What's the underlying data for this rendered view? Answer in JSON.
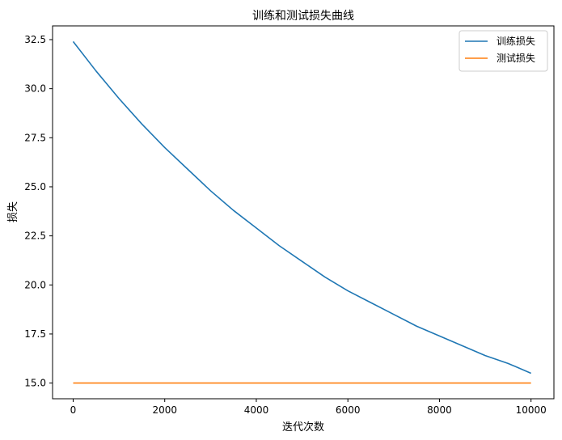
{
  "chart_data": {
    "type": "line",
    "title": "训练和测试损失曲线",
    "xlabel": "迭代次数",
    "ylabel": "损失",
    "xlim": [
      -450,
      10500
    ],
    "ylim": [
      14.2,
      33.2
    ],
    "x_ticks": [
      0,
      2000,
      4000,
      6000,
      8000,
      10000
    ],
    "x_tick_labels": [
      "0",
      "2000",
      "4000",
      "6000",
      "8000",
      "10000"
    ],
    "y_ticks": [
      15.0,
      17.5,
      20.0,
      22.5,
      25.0,
      27.5,
      30.0,
      32.5
    ],
    "y_tick_labels": [
      "15.0",
      "17.5",
      "20.0",
      "22.5",
      "25.0",
      "27.5",
      "30.0",
      "32.5"
    ],
    "grid": false,
    "legend_position": "top-right",
    "series": [
      {
        "name": "训练损失",
        "color": "#1f77b4",
        "x": [
          0,
          500,
          1000,
          1500,
          2000,
          2500,
          3000,
          3500,
          4000,
          4500,
          5000,
          5500,
          6000,
          6500,
          7000,
          7500,
          8000,
          8500,
          9000,
          9500,
          10000
        ],
        "y": [
          32.4,
          30.9,
          29.5,
          28.2,
          27.0,
          25.9,
          24.8,
          23.8,
          22.9,
          22.0,
          21.2,
          20.4,
          19.7,
          19.1,
          18.5,
          17.9,
          17.4,
          16.9,
          16.4,
          16.0,
          15.5
        ]
      },
      {
        "name": "测试损失",
        "color": "#ff7f0e",
        "x": [
          0,
          10000
        ],
        "y": [
          15.0,
          15.0
        ]
      }
    ]
  }
}
